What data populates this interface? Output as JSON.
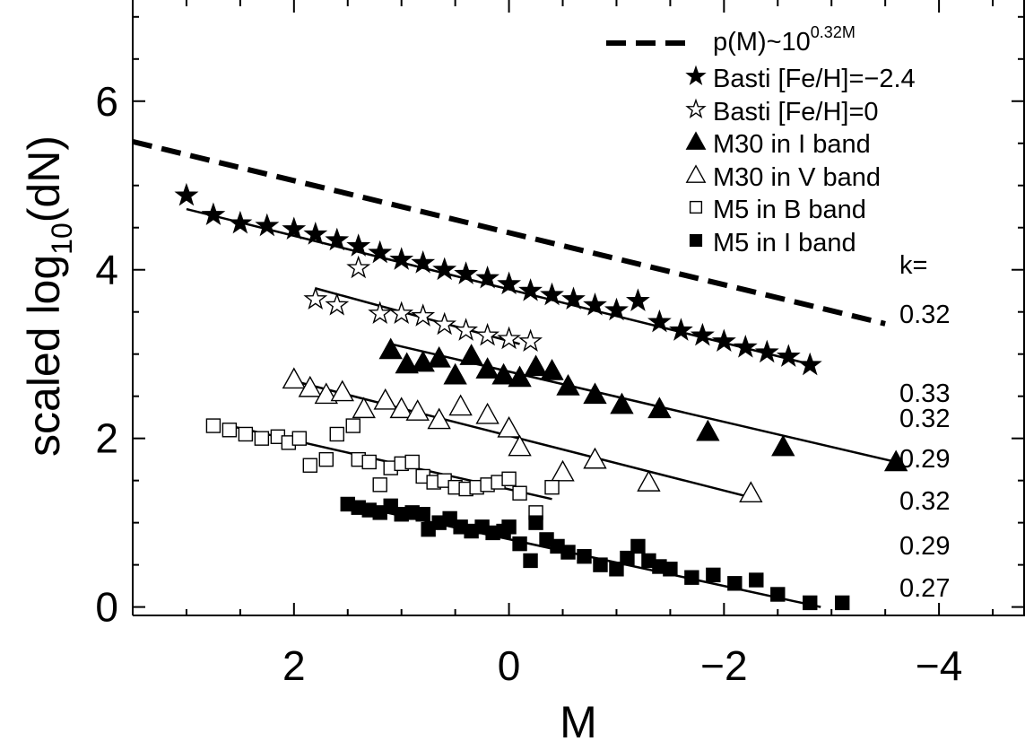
{
  "chart_data": {
    "type": "scatter",
    "xlabel": "M",
    "ylabel_main": "scaled log",
    "ylabel_sub": "10",
    "ylabel_tail": "(dN)",
    "xlim": [
      3.5,
      -4.8
    ],
    "ylim": [
      -0.1,
      7.2
    ],
    "x_axis_reversed": true,
    "x_ticks": [
      2,
      0,
      -2,
      -4
    ],
    "x_tick_labels": [
      "2",
      "0",
      "−2",
      "−4"
    ],
    "y_ticks": [
      0,
      2,
      4,
      6
    ],
    "y_tick_labels": [
      "0",
      "2",
      "4",
      "6"
    ],
    "legend_position": "top-right",
    "k_header": "k=",
    "k_values": [
      "0.32",
      "0.33",
      "0.32",
      "0.29",
      "0.32",
      "0.29",
      "0.27"
    ],
    "reference_line": {
      "label_main": "p(M)~10",
      "label_sup": "0.32M",
      "x": [
        3.5,
        -3.5
      ],
      "y": [
        5.52,
        3.36
      ]
    },
    "series": [
      {
        "name": "Basti [Fe/H]=−2.4",
        "marker": "star-filled",
        "x": [
          3.0,
          2.75,
          2.5,
          2.25,
          2.0,
          1.8,
          1.6,
          1.4,
          1.2,
          1.0,
          0.8,
          0.6,
          0.4,
          0.2,
          0.0,
          -0.2,
          -0.4,
          -0.6,
          -0.8,
          -1.0,
          -1.2,
          -1.4,
          -1.6,
          -1.8,
          -2.0,
          -2.2,
          -2.4,
          -2.6,
          -2.8
        ],
        "y": [
          4.88,
          4.65,
          4.55,
          4.52,
          4.48,
          4.42,
          4.35,
          4.28,
          4.2,
          4.12,
          4.08,
          4.0,
          3.95,
          3.9,
          3.83,
          3.75,
          3.7,
          3.65,
          3.58,
          3.52,
          3.63,
          3.38,
          3.28,
          3.22,
          3.15,
          3.08,
          3.02,
          2.97,
          2.87
        ]
      },
      {
        "name": "Basti [Fe/H]=0",
        "marker": "star-open",
        "x": [
          1.8,
          1.6,
          1.4,
          1.2,
          1.0,
          0.8,
          0.6,
          0.4,
          0.2,
          0.0,
          -0.2
        ],
        "y": [
          3.65,
          3.58,
          4.02,
          3.48,
          3.48,
          3.45,
          3.35,
          3.28,
          3.22,
          3.18,
          3.15
        ]
      },
      {
        "name": "M30 in I band",
        "marker": "triangle-filled",
        "x": [
          1.1,
          0.95,
          0.8,
          0.65,
          0.5,
          0.35,
          0.2,
          0.05,
          -0.1,
          -0.25,
          -0.4,
          -0.55,
          -0.8,
          -1.05,
          -1.4,
          -1.85,
          -2.55,
          -3.6
        ],
        "y": [
          3.05,
          2.88,
          2.9,
          2.95,
          2.75,
          2.98,
          2.82,
          2.75,
          2.72,
          2.85,
          2.8,
          2.62,
          2.52,
          2.4,
          2.35,
          2.08,
          1.9,
          1.72
        ]
      },
      {
        "name": "M30 in V band",
        "marker": "triangle-open",
        "x": [
          2.0,
          1.85,
          1.7,
          1.55,
          1.35,
          1.15,
          1.0,
          0.85,
          0.65,
          0.45,
          0.2,
          0.0,
          -0.1,
          -0.5,
          -0.8,
          -1.3,
          -2.25
        ],
        "y": [
          2.7,
          2.6,
          2.52,
          2.55,
          2.35,
          2.45,
          2.35,
          2.32,
          2.22,
          2.38,
          2.28,
          2.12,
          1.9,
          1.6,
          1.75,
          1.48,
          1.35
        ]
      },
      {
        "name": "M5 in B band",
        "marker": "square-open",
        "x": [
          2.75,
          2.6,
          2.45,
          2.3,
          2.15,
          2.05,
          1.95,
          1.85,
          1.7,
          1.6,
          1.45,
          1.4,
          1.3,
          1.2,
          1.1,
          1.0,
          0.9,
          0.8,
          0.7,
          0.6,
          0.5,
          0.4,
          0.3,
          0.2,
          0.1,
          0.0,
          -0.1,
          -0.25,
          -0.4
        ],
        "y": [
          2.15,
          2.1,
          2.05,
          2.0,
          2.02,
          1.95,
          2.0,
          1.68,
          1.75,
          2.05,
          2.15,
          1.75,
          1.72,
          1.45,
          1.65,
          1.7,
          1.72,
          1.55,
          1.48,
          1.5,
          1.42,
          1.4,
          1.42,
          1.45,
          1.48,
          1.52,
          1.35,
          1.12,
          1.42
        ]
      },
      {
        "name": "M5 in I band",
        "marker": "square-filled",
        "x": [
          1.5,
          1.4,
          1.3,
          1.2,
          1.1,
          1.0,
          0.9,
          0.8,
          0.75,
          0.65,
          0.55,
          0.45,
          0.35,
          0.25,
          0.15,
          0.05,
          0.0,
          -0.1,
          -0.2,
          -0.25,
          -0.35,
          -0.45,
          -0.55,
          -0.7,
          -0.85,
          -1.0,
          -1.1,
          -1.2,
          -1.3,
          -1.4,
          -1.5,
          -1.7,
          -1.9,
          -2.1,
          -2.3,
          -2.5,
          -2.8,
          -3.1
        ],
        "y": [
          1.22,
          1.18,
          1.15,
          1.12,
          1.2,
          1.1,
          1.12,
          1.1,
          0.92,
          1.0,
          1.05,
          0.95,
          0.9,
          0.95,
          0.88,
          0.9,
          0.95,
          0.75,
          0.55,
          1.0,
          0.8,
          0.72,
          0.65,
          0.6,
          0.5,
          0.45,
          0.58,
          0.72,
          0.55,
          0.48,
          0.45,
          0.35,
          0.38,
          0.28,
          0.32,
          0.15,
          0.05,
          0.05
        ]
      }
    ],
    "fit_lines": [
      {
        "x": [
          3.0,
          -2.8
        ],
        "y": [
          4.72,
          2.88
        ]
      },
      {
        "x": [
          1.8,
          -0.1
        ],
        "y": [
          3.78,
          3.12
        ]
      },
      {
        "x": [
          1.1,
          -3.6
        ],
        "y": [
          3.12,
          1.72
        ]
      },
      {
        "x": [
          2.0,
          -2.25
        ],
        "y": [
          2.68,
          1.3
        ]
      },
      {
        "x": [
          2.6,
          -0.4
        ],
        "y": [
          2.15,
          1.28
        ]
      },
      {
        "x": [
          1.5,
          -2.9
        ],
        "y": [
          1.22,
          0.0
        ]
      }
    ]
  }
}
